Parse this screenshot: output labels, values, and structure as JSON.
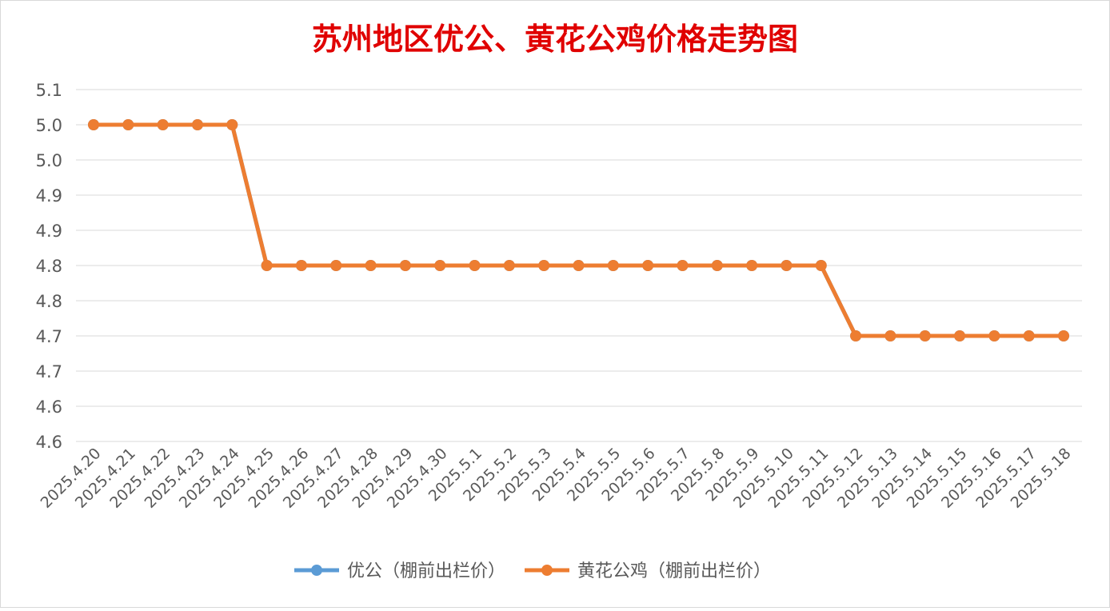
{
  "chart_data": {
    "type": "line",
    "title": "苏州地区优公、黄花公鸡价格走势图",
    "categories": [
      "2025.4.20",
      "2025.4.21",
      "2025.4.22",
      "2025.4.23",
      "2025.4.24",
      "2025.4.25",
      "2025.4.26",
      "2025.4.27",
      "2025.4.28",
      "2025.4.29",
      "2025.4.30",
      "2025.5.1",
      "2025.5.2",
      "2025.5.3",
      "2025.5.4",
      "2025.5.5",
      "2025.5.6",
      "2025.5.7",
      "2025.5.8",
      "2025.5.9",
      "2025.5.10",
      "2025.5.11",
      "2025.5.12",
      "2025.5.13",
      "2025.5.14",
      "2025.5.15",
      "2025.5.16",
      "2025.5.17",
      "2025.5.18"
    ],
    "ylim": [
      4.55,
      5.05
    ],
    "y_ticks": [
      4.55,
      4.6,
      4.65,
      4.7,
      4.75,
      4.8,
      4.85,
      4.9,
      4.95,
      5.0,
      5.05
    ],
    "y_tick_labels": [
      "4.6",
      "4.6",
      "4.7",
      "4.7",
      "4.8",
      "4.8",
      "4.9",
      "4.9",
      "5.0",
      "5.0",
      "5.1"
    ],
    "grid": true,
    "legend_position": "bottom",
    "series": [
      {
        "name": "优公（棚前出栏价）",
        "color": "#5b9bd5",
        "values": [
          5.0,
          5.0,
          5.0,
          5.0,
          5.0,
          4.8,
          4.8,
          4.8,
          4.8,
          4.8,
          4.8,
          4.8,
          4.8,
          4.8,
          4.8,
          4.8,
          4.8,
          4.8,
          4.8,
          4.8,
          4.8,
          4.8,
          4.7,
          4.7,
          4.7,
          4.7,
          4.7,
          4.7,
          4.7
        ]
      },
      {
        "name": "黄花公鸡（棚前出栏价）",
        "color": "#ed7d31",
        "values": [
          5.0,
          5.0,
          5.0,
          5.0,
          5.0,
          4.8,
          4.8,
          4.8,
          4.8,
          4.8,
          4.8,
          4.8,
          4.8,
          4.8,
          4.8,
          4.8,
          4.8,
          4.8,
          4.8,
          4.8,
          4.8,
          4.8,
          4.7,
          4.7,
          4.7,
          4.7,
          4.7,
          4.7,
          4.7
        ]
      }
    ],
    "title_color": "#e00000"
  }
}
